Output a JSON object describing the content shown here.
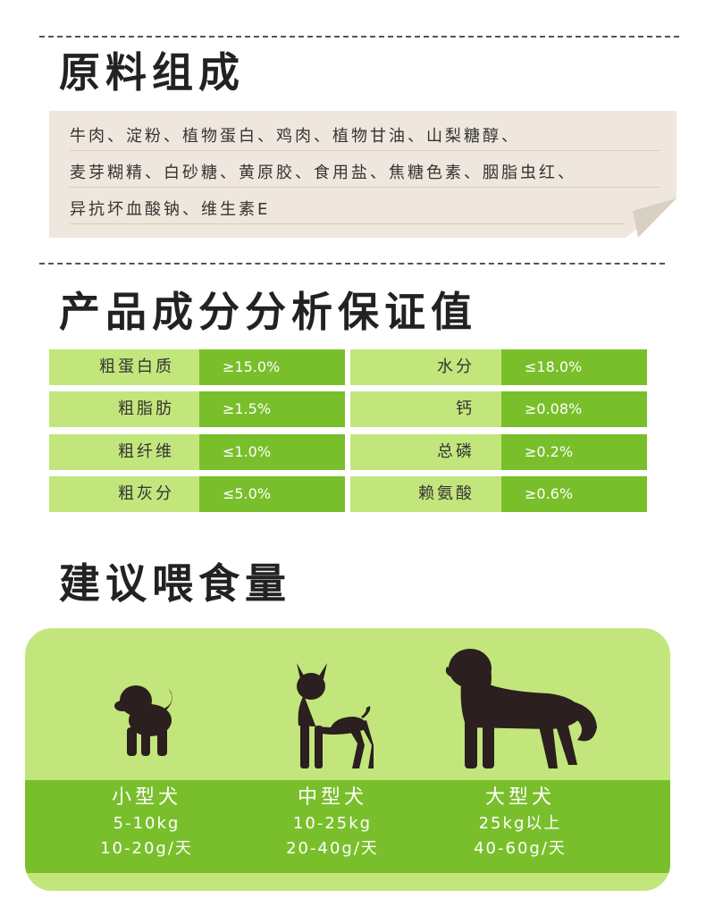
{
  "ingredients": {
    "title": "原料组成",
    "lines": [
      "牛肉、淀粉、植物蛋白、鸡肉、植物甘油、山梨糖醇、",
      "麦芽糊精、白砂糖、黄原胶、食用盐、焦糖色素、胭脂虫红、",
      "异抗坏血酸钠、维生素E"
    ]
  },
  "analysis": {
    "title": "产品成分分析保证值",
    "left": [
      {
        "name": "粗蛋白质",
        "value": "≥15.0%"
      },
      {
        "name": "粗脂肪",
        "value": "≥1.5%"
      },
      {
        "name": "粗纤维",
        "value": "≤1.0%"
      },
      {
        "name": "粗灰分",
        "value": "≤5.0%"
      }
    ],
    "right": [
      {
        "name": "水分",
        "value": "≤18.0%"
      },
      {
        "name": "钙",
        "value": "≥0.08%"
      },
      {
        "name": "总磷",
        "value": "≥0.2%"
      },
      {
        "name": "赖氨酸",
        "value": "≥0.6%"
      }
    ]
  },
  "feeding": {
    "title": "建议喂食量",
    "dogs": [
      {
        "size": "小型犬",
        "weight": "5-10kg",
        "amount": "10-20g/天",
        "icon": "small-dog-icon"
      },
      {
        "size": "中型犬",
        "weight": "10-25kg",
        "amount": "20-40g/天",
        "icon": "medium-dog-icon"
      },
      {
        "size": "大型犬",
        "weight": "25kg以上",
        "amount": "40-60g/天",
        "icon": "large-dog-icon"
      }
    ]
  },
  "colors": {
    "light_green": "#c3e67c",
    "dark_green": "#79bf2b",
    "note_bg": "#efe7dd",
    "silhouette": "#2b1f1f"
  }
}
